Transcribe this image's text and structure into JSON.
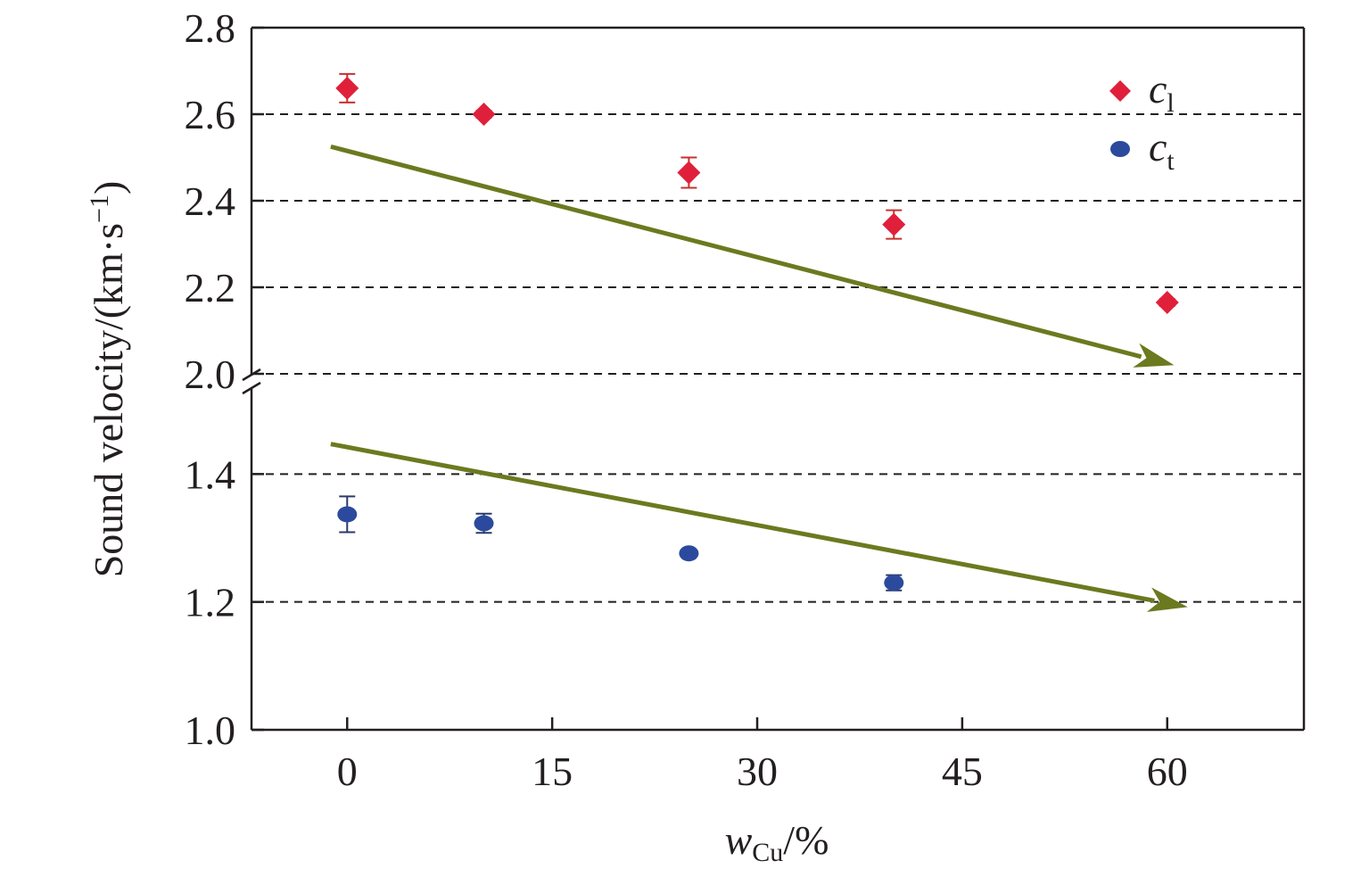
{
  "chart_data": {
    "type": "scatter",
    "title": "",
    "xlabel": {
      "main": "w",
      "sub": "Cu",
      "unit": "/%"
    },
    "ylabel": {
      "main": "Sound velocity/(km·s",
      "sup": "−1",
      "close": ")"
    },
    "xlim": [
      -7,
      70
    ],
    "x_ticks": [
      0,
      15,
      30,
      45,
      60
    ],
    "y_ticks_upper": [
      "2.0",
      "2.2",
      "2.4",
      "2.6",
      "2.8"
    ],
    "y_ticks_lower": [
      "1.0",
      "1.2",
      "1.4"
    ],
    "ylim_upper": [
      2.0,
      2.8
    ],
    "ylim_lower": [
      1.0,
      1.48
    ],
    "axis_break": true,
    "grid": "dashed horizontal",
    "legend_position": "top-right",
    "series": [
      {
        "name": "c",
        "sub": "l",
        "marker": "diamond",
        "color": "#e0203a",
        "points": [
          {
            "x": 0,
            "y": 2.66,
            "err": 0.033
          },
          {
            "x": 10,
            "y": 2.6,
            "err": 0.008
          },
          {
            "x": 25,
            "y": 2.465,
            "err": 0.035
          },
          {
            "x": 40,
            "y": 2.345,
            "err": 0.033
          },
          {
            "x": 60,
            "y": 2.165,
            "err": 0.008
          }
        ]
      },
      {
        "name": "c",
        "sub": "t",
        "marker": "circle",
        "color": "#2b4a9e",
        "points": [
          {
            "x": 0,
            "y": 1.337,
            "err": 0.028
          },
          {
            "x": 10,
            "y": 1.323,
            "err": 0.015
          },
          {
            "x": 25,
            "y": 1.276,
            "err": 0.005
          },
          {
            "x": 40,
            "y": 1.23,
            "err": 0.012
          }
        ]
      }
    ],
    "trend_arrows": [
      {
        "panel": "upper",
        "from": [
          -1.2,
          2.525
        ],
        "to": [
          60.5,
          2.02
        ]
      },
      {
        "panel": "lower",
        "from": [
          -1.2,
          1.447
        ],
        "to": [
          61.5,
          1.192
        ]
      }
    ],
    "arrow_color": "#6b7a1f"
  }
}
